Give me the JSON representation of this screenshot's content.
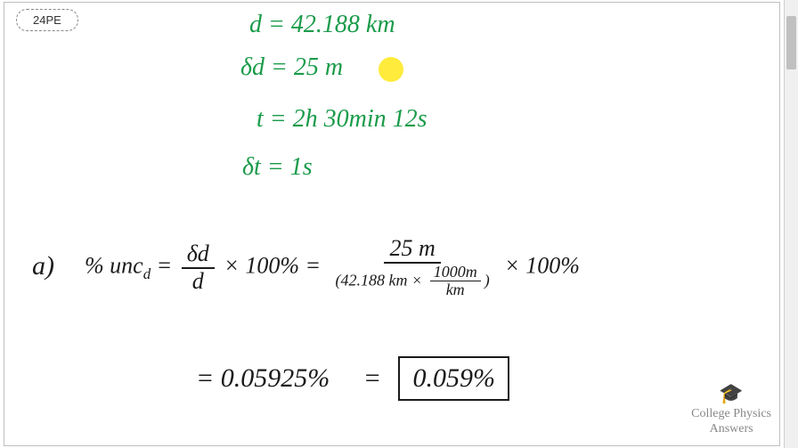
{
  "problem": {
    "label": "24PE"
  },
  "given": {
    "line1": "d  =   42.188 km",
    "line2": "δd  =  25 m",
    "line3": "t   =  2h 30min 12s",
    "line4": "δt  =  1s"
  },
  "work": {
    "part_label": "a)",
    "formula_prefix": "% unc",
    "formula_sub": "d",
    "equals1": " = ",
    "frac1_num": "δd",
    "frac1_den": "d",
    "mult100_1": " × 100%  = ",
    "frac2_num": "25 m",
    "frac2_den_a": "(42.188 km × ",
    "frac2_den_frac_num": "1000m",
    "frac2_den_frac_den": "km",
    "frac2_den_b": ")",
    "mult100_2": " × 100%",
    "result_eq1": "=  0.05925%",
    "result_eq2": "=",
    "result_boxed": "0.059%"
  },
  "branding": {
    "cap_glyph": "🎓",
    "line1": "College Physics",
    "line2": "Answers"
  },
  "colors": {
    "given_text": "#1a9b4a",
    "work_text": "#1a1a1a",
    "highlight": "#ffeb3b",
    "background": "#ffffff",
    "logo_text": "#888888"
  }
}
